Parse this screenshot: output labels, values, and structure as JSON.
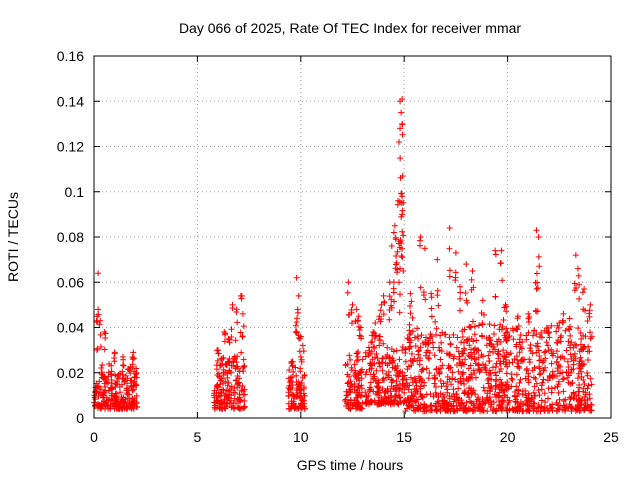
{
  "chart_data": {
    "type": "scatter",
    "title": "Day 066 of 2025, Rate Of TEC Index for receiver mmar",
    "xlabel": "GPS time / hours",
    "ylabel": "ROTI / TECUs",
    "xlim": [
      0,
      25
    ],
    "ylim": [
      0,
      0.16
    ],
    "xticks": [
      0,
      5,
      10,
      15,
      20,
      25
    ],
    "xtick_labels": [
      "0",
      "5",
      "10",
      "15",
      "20",
      "25"
    ],
    "yticks": [
      0,
      0.02,
      0.04,
      0.06,
      0.08,
      0.1,
      0.12,
      0.14,
      0.16
    ],
    "ytick_labels": [
      "0",
      "0.02",
      "0.04",
      "0.06",
      "0.08",
      "0.1",
      "0.12",
      "0.14",
      "0.16"
    ],
    "grid": true,
    "marker": "+",
    "color": "#ff0000",
    "clusters": [
      {
        "x_range": [
          0.0,
          2.1
        ],
        "base": [
          0.004,
          0.02
        ],
        "outliers": [
          [
            0.2,
            0.064
          ],
          [
            0.15,
            0.045
          ],
          [
            0.3,
            0.043
          ],
          [
            0.5,
            0.038
          ],
          [
            1.0,
            0.029
          ],
          [
            1.4,
            0.027
          ],
          [
            1.9,
            0.029
          ]
        ]
      },
      {
        "x_range": [
          5.8,
          7.3
        ],
        "base": [
          0.004,
          0.025
        ],
        "outliers": [
          [
            6.3,
            0.038
          ],
          [
            6.7,
            0.05
          ],
          [
            6.9,
            0.048
          ],
          [
            7.1,
            0.054
          ],
          [
            7.2,
            0.046
          ],
          [
            6.0,
            0.03
          ],
          [
            6.5,
            0.035
          ]
        ]
      },
      {
        "x_range": [
          9.4,
          10.2
        ],
        "base": [
          0.004,
          0.02
        ],
        "outliers": [
          [
            9.8,
            0.062
          ],
          [
            9.9,
            0.054
          ],
          [
            9.85,
            0.048
          ],
          [
            10.0,
            0.036
          ],
          [
            10.1,
            0.032
          ],
          [
            9.6,
            0.025
          ]
        ]
      },
      {
        "x_range": [
          12.1,
          13.0
        ],
        "base": [
          0.004,
          0.025
        ],
        "outliers": [
          [
            12.3,
            0.06
          ],
          [
            12.5,
            0.05
          ],
          [
            12.7,
            0.048
          ],
          [
            12.8,
            0.045
          ],
          [
            12.9,
            0.04
          ]
        ]
      },
      {
        "x_range": [
          13.1,
          15.0
        ],
        "base": [
          0.006,
          0.03
        ],
        "outliers": [
          [
            14.8,
            0.14
          ],
          [
            14.9,
            0.141
          ],
          [
            14.85,
            0.135
          ],
          [
            14.9,
            0.13
          ],
          [
            14.8,
            0.128
          ],
          [
            14.75,
            0.122
          ],
          [
            14.9,
            0.098
          ],
          [
            14.7,
            0.096
          ],
          [
            14.9,
            0.09
          ],
          [
            14.5,
            0.082
          ],
          [
            14.55,
            0.085
          ],
          [
            14.6,
            0.079
          ],
          [
            14.4,
            0.076
          ],
          [
            14.8,
            0.066
          ],
          [
            14.3,
            0.06
          ],
          [
            14.0,
            0.054
          ],
          [
            13.9,
            0.05
          ],
          [
            13.8,
            0.045
          ],
          [
            13.6,
            0.042
          ],
          [
            13.5,
            0.038
          ]
        ]
      },
      {
        "x_range": [
          15.0,
          24.1
        ],
        "base": [
          0.003,
          0.035
        ],
        "outliers": [
          [
            15.8,
            0.08
          ],
          [
            16.0,
            0.075
          ],
          [
            16.6,
            0.07
          ],
          [
            17.2,
            0.084
          ],
          [
            17.5,
            0.073
          ],
          [
            18.0,
            0.068
          ],
          [
            18.3,
            0.065
          ],
          [
            19.4,
            0.074
          ],
          [
            19.7,
            0.074
          ],
          [
            21.4,
            0.083
          ],
          [
            21.5,
            0.08
          ],
          [
            21.4,
            0.057
          ],
          [
            23.3,
            0.072
          ],
          [
            23.4,
            0.066
          ],
          [
            23.7,
            0.057
          ],
          [
            24.0,
            0.05
          ],
          [
            15.3,
            0.055
          ],
          [
            16.3,
            0.055
          ],
          [
            17.7,
            0.058
          ],
          [
            18.8,
            0.052
          ],
          [
            19.9,
            0.05
          ],
          [
            20.5,
            0.045
          ],
          [
            21.0,
            0.046
          ],
          [
            22.0,
            0.038
          ],
          [
            22.7,
            0.046
          ],
          [
            23.0,
            0.044
          ]
        ]
      }
    ]
  }
}
